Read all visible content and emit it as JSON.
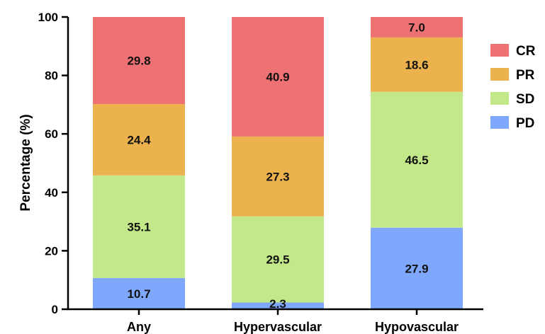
{
  "chart_data": {
    "type": "bar",
    "stacked": true,
    "categories": [
      "Any",
      "Hypervascular",
      "Hypovascular"
    ],
    "series": [
      {
        "name": "PD",
        "values": [
          10.7,
          2.3,
          27.9
        ],
        "labels": [
          "10.7",
          "2.3",
          "27.9"
        ],
        "color": "#7fa7fb"
      },
      {
        "name": "SD",
        "values": [
          35.1,
          29.5,
          46.5
        ],
        "labels": [
          "35.1",
          "29.5",
          "46.5"
        ],
        "color": "#c3e889"
      },
      {
        "name": "PR",
        "values": [
          24.4,
          27.3,
          18.6
        ],
        "labels": [
          "24.4",
          "27.3",
          "18.6"
        ],
        "color": "#ecb24e"
      },
      {
        "name": "CR",
        "values": [
          29.8,
          40.9,
          7.0
        ],
        "labels": [
          "29.8",
          "40.9",
          "7.0"
        ],
        "color": "#ee7273"
      }
    ],
    "ylabel": "Percentage (%)",
    "ylim": [
      0,
      100
    ],
    "yticks": [
      "0",
      "20",
      "40",
      "60",
      "80",
      "100"
    ],
    "legend_order": [
      "CR",
      "PR",
      "SD",
      "PD"
    ],
    "legend_position": "right",
    "grid": false
  }
}
